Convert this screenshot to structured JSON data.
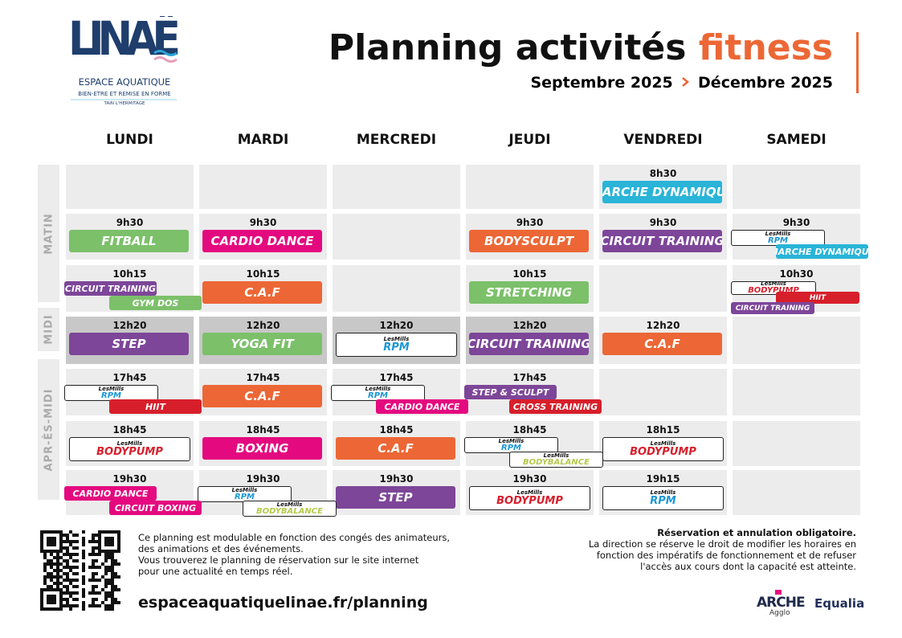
{
  "header": {
    "logo": {
      "name": "LINAË",
      "subtitle": "ESPACE AQUATIQUE",
      "tagline": "BIEN-ETRE ET REMISE EN FORME",
      "place": "TAIN L'HERMITAGE"
    },
    "title": "Planning activités",
    "title_accent": "fitness",
    "date_from": "Septembre 2025",
    "date_to": "Décembre 2025"
  },
  "days": [
    "LUNDI",
    "MARDI",
    "MERCREDI",
    "JEUDI",
    "VENDREDI",
    "SAMEDI"
  ],
  "periods": [
    "MATIN",
    "MIDI",
    "APR-ÈS-MIDI"
  ],
  "rows": [
    [
      null,
      null,
      null,
      null,
      {
        "time": "8h30",
        "classes": [
          {
            "name": "MARCHE DYNAMIQUE",
            "color": "#29b4d8"
          }
        ]
      },
      null
    ],
    [
      {
        "time": "9h30",
        "classes": [
          {
            "name": "FITBALL",
            "color": "#7cc06a"
          }
        ]
      },
      {
        "time": "9h30",
        "classes": [
          {
            "name": "CARDIO DANCE",
            "color": "#e4097f"
          }
        ]
      },
      null,
      {
        "time": "9h30",
        "classes": [
          {
            "name": "BODYSCULPT",
            "color": "#ec6735"
          }
        ]
      },
      {
        "time": "9h30",
        "classes": [
          {
            "name": "CIRCUIT TRAINING",
            "color": "#7d4699"
          }
        ]
      },
      {
        "time": "9h30",
        "classes": [
          {
            "brand": "LesMills",
            "name": "RPM",
            "color": "#1b97d5"
          },
          {
            "name": "MARCHE DYNAMIQUE",
            "color": "#29b4d8"
          }
        ]
      }
    ],
    [
      {
        "time": "10h15",
        "classes": [
          {
            "name": "CIRCUIT TRAINING",
            "color": "#7d4699"
          },
          {
            "name": "GYM DOS",
            "color": "#7cc06a"
          }
        ]
      },
      {
        "time": "10h15",
        "classes": [
          {
            "name": "C.A.F",
            "color": "#ec6735"
          }
        ]
      },
      null,
      {
        "time": "10h15",
        "classes": [
          {
            "name": "STRETCHING",
            "color": "#7cc06a"
          }
        ]
      },
      null,
      {
        "time": "10h30",
        "classes": [
          {
            "brand": "LesMills",
            "name": "BODYPUMP",
            "color": "#d71f2b"
          },
          {
            "name": "HIIT",
            "color": "#d71f2b"
          },
          {
            "name": "CIRCUIT TRAINING",
            "color": "#7d4699"
          }
        ]
      }
    ],
    [
      {
        "time": "12h20",
        "classes": [
          {
            "name": "STEP",
            "color": "#7d4699"
          }
        ]
      },
      {
        "time": "12h20",
        "classes": [
          {
            "name": "YOGA FIT",
            "color": "#7cc06a"
          }
        ]
      },
      {
        "time": "12h20",
        "classes": [
          {
            "brand": "LesMills",
            "name": "RPM",
            "color": "#1b97d5"
          }
        ]
      },
      {
        "time": "12h20",
        "classes": [
          {
            "name": "CIRCUIT TRAINING",
            "color": "#7d4699"
          }
        ]
      },
      {
        "time": "12h20",
        "classes": [
          {
            "name": "C.A.F",
            "color": "#ec6735"
          }
        ]
      },
      null
    ],
    [
      {
        "time": "17h45",
        "classes": [
          {
            "brand": "LesMills",
            "name": "RPM",
            "color": "#1b97d5"
          },
          {
            "name": "HIIT",
            "color": "#d71f2b"
          }
        ]
      },
      {
        "time": "17h45",
        "classes": [
          {
            "name": "C.A.F",
            "color": "#ec6735"
          }
        ]
      },
      {
        "time": "17h45",
        "classes": [
          {
            "brand": "LesMills",
            "name": "RPM",
            "color": "#1b97d5"
          },
          {
            "name": "CARDIO DANCE",
            "color": "#e4097f"
          }
        ]
      },
      {
        "time": "17h45",
        "classes": [
          {
            "name": "STEP & SCULPT",
            "color": "#7d4699"
          },
          {
            "name": "CROSS TRAINING",
            "color": "#d71f2b"
          }
        ]
      },
      null,
      null
    ],
    [
      {
        "time": "18h45",
        "classes": [
          {
            "brand": "LesMills",
            "name": "BODYPUMP",
            "color": "#d71f2b"
          }
        ]
      },
      {
        "time": "18h45",
        "classes": [
          {
            "name": "BOXING",
            "color": "#e4097f"
          }
        ]
      },
      {
        "time": "18h45",
        "classes": [
          {
            "name": "C.A.F",
            "color": "#ec6735"
          }
        ]
      },
      {
        "time": "18h45",
        "classes": [
          {
            "brand": "LesMills",
            "name": "RPM",
            "color": "#1b97d5"
          },
          {
            "brand": "LesMills",
            "name": "BODYBALANCE",
            "color": "#b5c94a"
          }
        ]
      },
      {
        "time": "18h15",
        "classes": [
          {
            "brand": "LesMills",
            "name": "BODYPUMP",
            "color": "#d71f2b"
          }
        ]
      },
      null
    ],
    [
      {
        "time": "19h30",
        "classes": [
          {
            "name": "CARDIO DANCE",
            "color": "#e4097f"
          },
          {
            "name": "CIRCUIT BOXING",
            "color": "#e4097f"
          }
        ]
      },
      {
        "time": "19h30",
        "classes": [
          {
            "brand": "LesMills",
            "name": "RPM",
            "color": "#1b97d5"
          },
          {
            "brand": "LesMills",
            "name": "BODYBALANCE",
            "color": "#b5c94a"
          }
        ]
      },
      {
        "time": "19h30",
        "classes": [
          {
            "name": "STEP",
            "color": "#7d4699"
          }
        ]
      },
      {
        "time": "19h30",
        "classes": [
          {
            "brand": "LesMills",
            "name": "BODYPUMP",
            "color": "#d71f2b"
          }
        ]
      },
      {
        "time": "19h15",
        "classes": [
          {
            "brand": "LesMills",
            "name": "RPM",
            "color": "#1b97d5"
          }
        ]
      },
      null
    ]
  ],
  "footer": {
    "note": [
      "Ce planning est modulable en fonction des congés des animateurs,",
      "des animations et des événements.",
      "Vous trouverez le planning de réservation sur le site internet",
      "pour une actualité en temps réel."
    ],
    "url": "espaceaquatiquelinae.fr/planning",
    "reservation_title": "Réservation et annulation obligatoire.",
    "reservation": [
      "La direction se réserve le droit de modifier les horaires en",
      "fonction des impératifs de fonctionnement et de refuser",
      "l'accès aux cours dont la capacité est atteinte."
    ],
    "partners": [
      "ARCHE",
      "Agglo",
      "Equalia"
    ]
  }
}
